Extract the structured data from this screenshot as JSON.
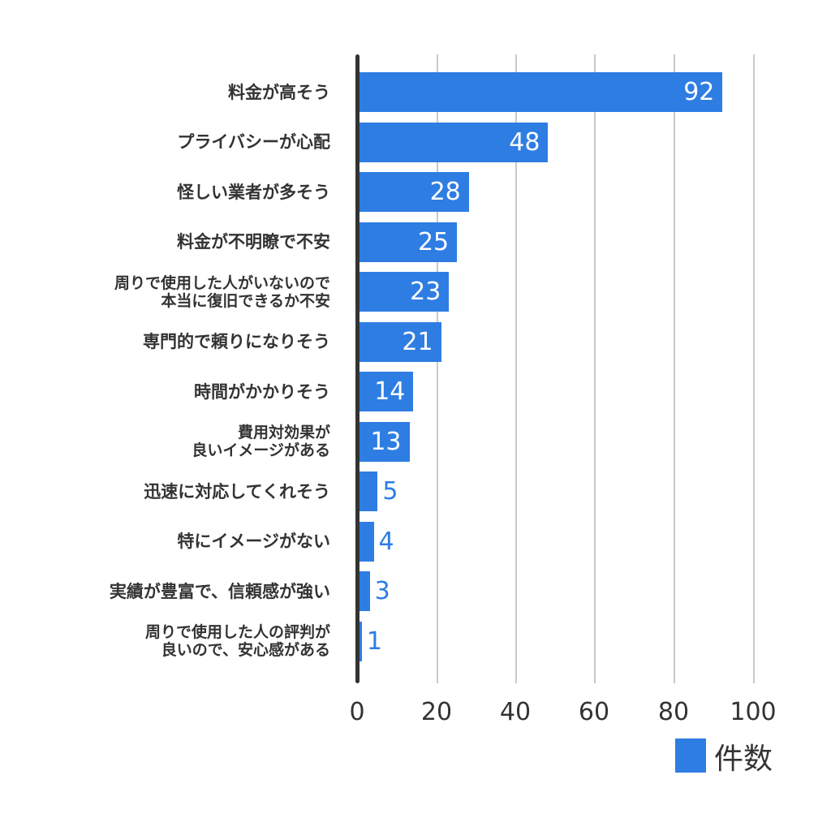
{
  "chart_data": {
    "type": "bar",
    "orientation": "horizontal",
    "title": "",
    "xlabel": "",
    "ylabel": "",
    "xlim": [
      0,
      100
    ],
    "xticks": [
      "0",
      "20",
      "40",
      "60",
      "80",
      "100"
    ],
    "grid": true,
    "legend_position": "bottom-right",
    "color": "#2e7de3",
    "categories": [
      "料金が高そう",
      "プライバシーが心配",
      "怪しい業者が多そう",
      "料金が不明瞭で不安",
      "周りで使用した人がいないので\n本当に復旧できるか不安",
      "専門的で頼りになりそう",
      "時間がかかりそう",
      "費用対効果が\n良いイメージがある",
      "迅速に対応してくれそう",
      "特にイメージがない",
      "実績が豊富で、信頼感が強い",
      "周りで使用した人の評判が\n良いので、安心感がある"
    ],
    "series": [
      {
        "name": "件数",
        "values": [
          92,
          48,
          28,
          25,
          23,
          21,
          14,
          13,
          5,
          4,
          3,
          1
        ]
      }
    ]
  },
  "labels": {
    "c0": [
      "料金が高そう"
    ],
    "c1": [
      "プライバシーが心配"
    ],
    "c2": [
      "怪しい業者が多そう"
    ],
    "c3": [
      "料金が不明瞭で不安"
    ],
    "c4": [
      "周りで使用した人がいないので",
      "本当に復旧できるか不安"
    ],
    "c5": [
      "専門的で頼りになりそう"
    ],
    "c6": [
      "時間がかかりそう"
    ],
    "c7": [
      "費用対効果が",
      "良いイメージがある"
    ],
    "c8": [
      "迅速に対応してくれそう"
    ],
    "c9": [
      "特にイメージがない"
    ],
    "c10": [
      "実績が豊富で、信頼感が強い"
    ],
    "c11": [
      "周りで使用した人の評判が",
      "良いので、安心感がある"
    ]
  },
  "values_text": [
    "92",
    "48",
    "28",
    "25",
    "23",
    "21",
    "14",
    "13",
    "5",
    "4",
    "3",
    "1"
  ],
  "ticks": [
    "0",
    "20",
    "40",
    "60",
    "80",
    "100"
  ],
  "legend": {
    "label": "件数"
  }
}
